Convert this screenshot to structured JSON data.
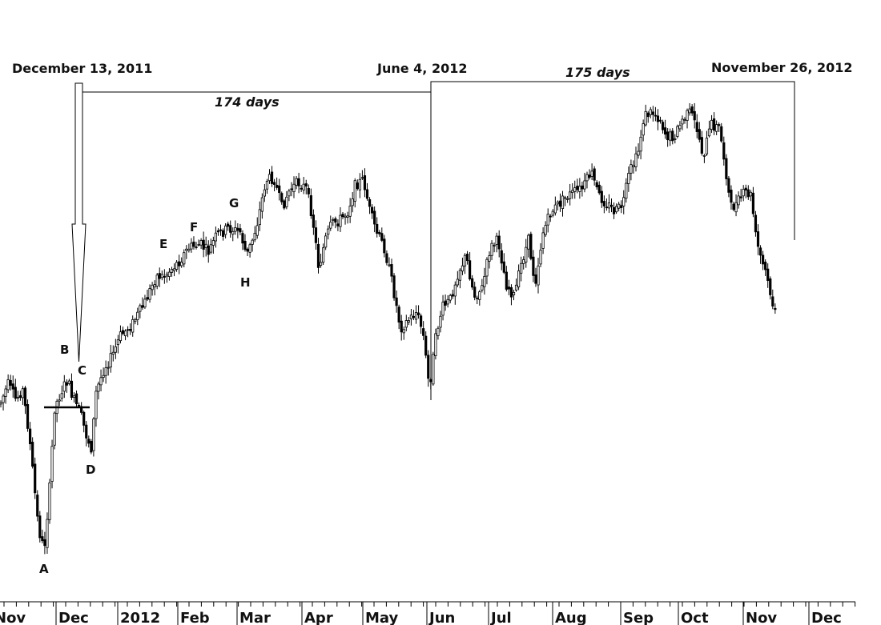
{
  "chart_data": {
    "type": "candlestick",
    "title": "",
    "xlabel": "",
    "ylabel": "",
    "grid": false,
    "x_axis": {
      "months": [
        "Nov",
        "Dec",
        "2012",
        "Feb",
        "Mar",
        "Apr",
        "May",
        "Jun",
        "Jul",
        "Aug",
        "Sep",
        "Oct",
        "Nov",
        "Dec"
      ]
    },
    "date_markers": [
      {
        "label": "December 13, 2011",
        "date": "2011-12-13"
      },
      {
        "label": "June 4, 2012",
        "date": "2012-06-04"
      },
      {
        "label": "November 26, 2012",
        "date": "2012-11-26"
      }
    ],
    "spans": [
      {
        "label": "174 days",
        "from": "2011-12-13",
        "to": "2012-06-04"
      },
      {
        "label": "175 days",
        "from": "2012-06-04",
        "to": "2012-11-26"
      }
    ],
    "point_labels": [
      {
        "label": "A",
        "date": "2011-11-25"
      },
      {
        "label": "B",
        "date": "2011-12-07"
      },
      {
        "label": "C",
        "date": "2011-12-13"
      },
      {
        "label": "D",
        "date": "2011-12-19"
      },
      {
        "label": "E",
        "date": "2012-01-27"
      },
      {
        "label": "F",
        "date": "2012-02-09"
      },
      {
        "label": "G",
        "date": "2012-02-27"
      },
      {
        "label": "H",
        "date": "2012-03-06"
      }
    ]
  }
}
